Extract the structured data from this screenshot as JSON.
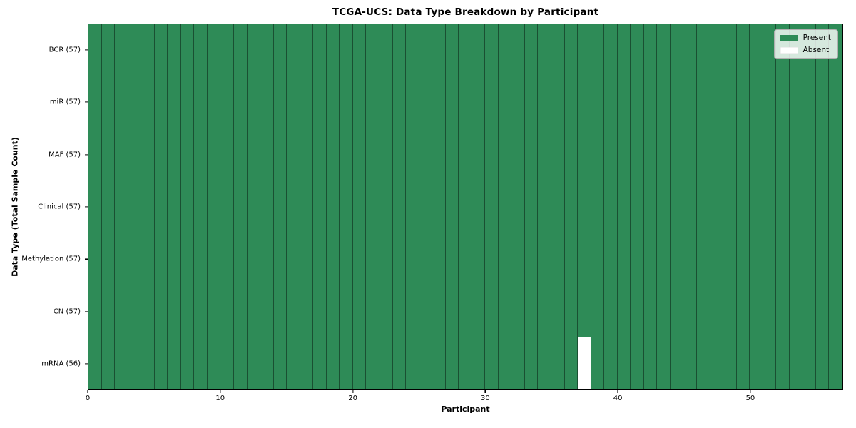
{
  "chart_data": {
    "type": "heatmap",
    "title": "TCGA-UCS: Data Type Breakdown by Participant",
    "xlabel": "Participant",
    "ylabel": "Data Type (Total Sample Count)",
    "n_participants": 57,
    "x_range": [
      0,
      57
    ],
    "xticks": [
      0,
      10,
      20,
      30,
      40,
      50
    ],
    "grid": "cell-edges",
    "legend_position": "upper-right",
    "colors": {
      "present": "#2e8b57",
      "absent": "#ffffff"
    },
    "legend": [
      {
        "label": "Present",
        "color": "#2e8b57"
      },
      {
        "label": "Absent",
        "color": "#ffffff"
      }
    ],
    "rows": [
      {
        "label": "BCR (57)",
        "data_type": "BCR",
        "total_samples": 57,
        "absent_participants": []
      },
      {
        "label": "miR (57)",
        "data_type": "miR",
        "total_samples": 57,
        "absent_participants": []
      },
      {
        "label": "MAF (57)",
        "data_type": "MAF",
        "total_samples": 57,
        "absent_participants": []
      },
      {
        "label": "Clinical (57)",
        "data_type": "Clinical",
        "total_samples": 57,
        "absent_participants": []
      },
      {
        "label": "Methylation (57)",
        "data_type": "Methylation",
        "total_samples": 57,
        "absent_participants": []
      },
      {
        "label": "CN (57)",
        "data_type": "CN",
        "total_samples": 57,
        "absent_participants": []
      },
      {
        "label": "mRNA (56)",
        "data_type": "mRNA",
        "total_samples": 56,
        "absent_participants": [
          37
        ]
      }
    ]
  }
}
